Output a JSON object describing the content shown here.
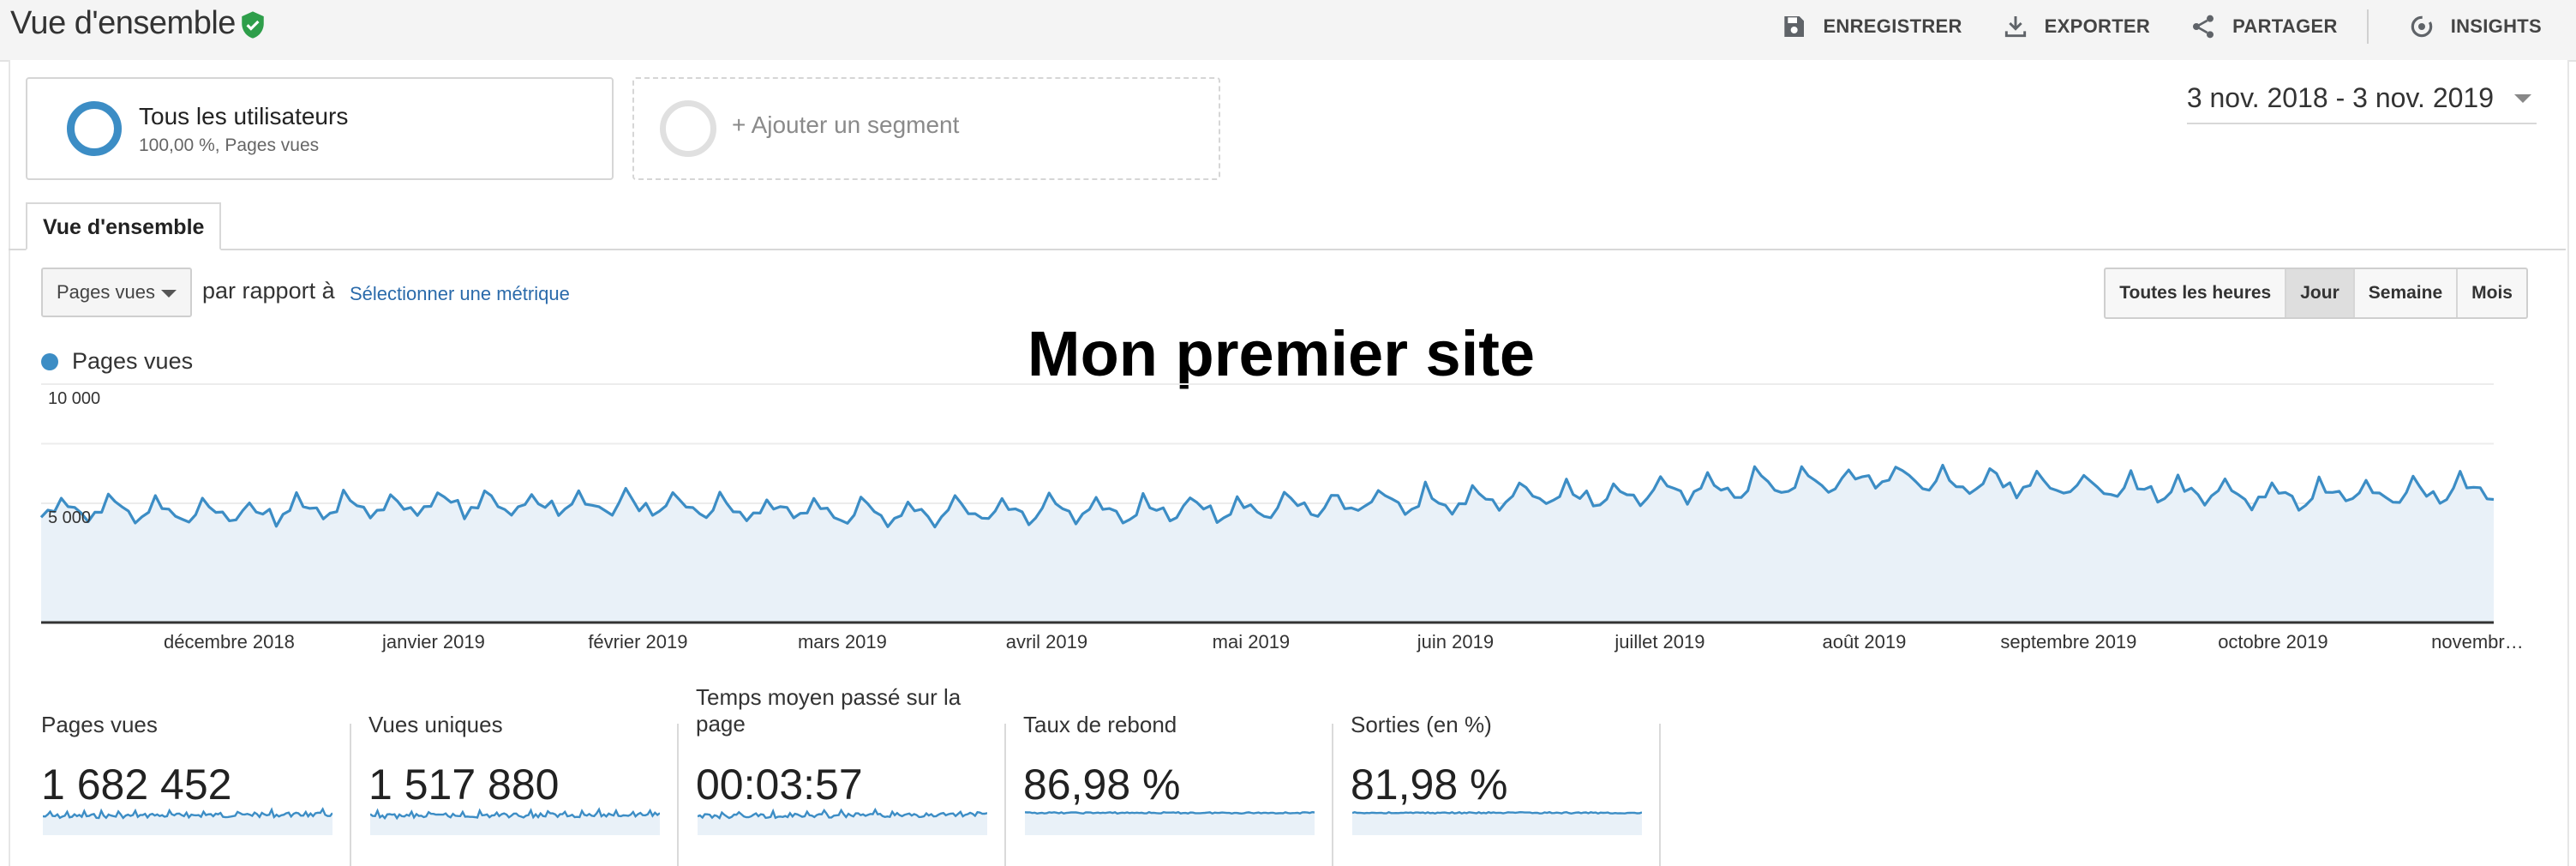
{
  "header": {
    "title": "Vue d'ensemble",
    "actions": [
      {
        "label": "ENREGISTRER",
        "icon": "save-icon"
      },
      {
        "label": "EXPORTER",
        "icon": "download-icon"
      },
      {
        "label": "PARTAGER",
        "icon": "share-icon"
      },
      {
        "label": "INSIGHTS",
        "icon": "insights-icon"
      }
    ]
  },
  "segments": {
    "active": {
      "title": "Tous les utilisateurs",
      "subtitle": "100,00 %, Pages vues"
    },
    "add_label": "+ Ajouter un segment"
  },
  "date_range": "3 nov. 2018 - 3 nov. 2019",
  "tab": "Vue d'ensemble",
  "controls": {
    "metric_select": "Pages vues",
    "compare_text": "par rapport à",
    "compare_link": "Sélectionner une métrique",
    "granularity": [
      "Toutes les heures",
      "Jour",
      "Semaine",
      "Mois"
    ],
    "granularity_active": "Jour"
  },
  "legend": {
    "label": "Pages vues",
    "color": "#3c8dc5"
  },
  "chart_title": "Mon premier site",
  "chart_data": {
    "type": "area",
    "series": [
      {
        "name": "Pages vues",
        "color": "#3c8dc5"
      }
    ],
    "y_ticks": [
      {
        "value": 10000,
        "label": "10 000"
      },
      {
        "value": 5000,
        "label": "5 000"
      }
    ],
    "ylim": [
      0,
      10000
    ],
    "x_labels": [
      "décembre 2018",
      "janvier 2019",
      "février 2019",
      "mars 2019",
      "avril 2019",
      "mai 2019",
      "juin 2019",
      "juillet 2019",
      "août 2019",
      "septembre 2019",
      "octobre 2019",
      "novembr…"
    ],
    "monthly_levels": [
      {
        "month": "novembre 2018",
        "value": 4700
      },
      {
        "month": "décembre 2018",
        "value": 4500
      },
      {
        "month": "janvier 2019",
        "value": 4900
      },
      {
        "month": "février 2019",
        "value": 4800
      },
      {
        "month": "mars 2019",
        "value": 4500
      },
      {
        "month": "avril 2019",
        "value": 4600
      },
      {
        "month": "mai 2019",
        "value": 4700
      },
      {
        "month": "juin 2019",
        "value": 5100
      },
      {
        "month": "juillet 2019",
        "value": 5400
      },
      {
        "month": "août 2019",
        "value": 6000
      },
      {
        "month": "septembre 2019",
        "value": 5600
      },
      {
        "month": "octobre 2019",
        "value": 5200
      },
      {
        "month": "novembre 2019",
        "value": 5500
      }
    ]
  },
  "kpis": [
    {
      "label": "Pages vues",
      "value": "1 682 452"
    },
    {
      "label": "Vues uniques",
      "value": "1 517 880"
    },
    {
      "label": "Temps moyen passé sur la page",
      "value": "00:03:57"
    },
    {
      "label": "Taux de rebond",
      "value": "86,98 %"
    },
    {
      "label": "Sorties (en %)",
      "value": "81,98 %"
    }
  ]
}
